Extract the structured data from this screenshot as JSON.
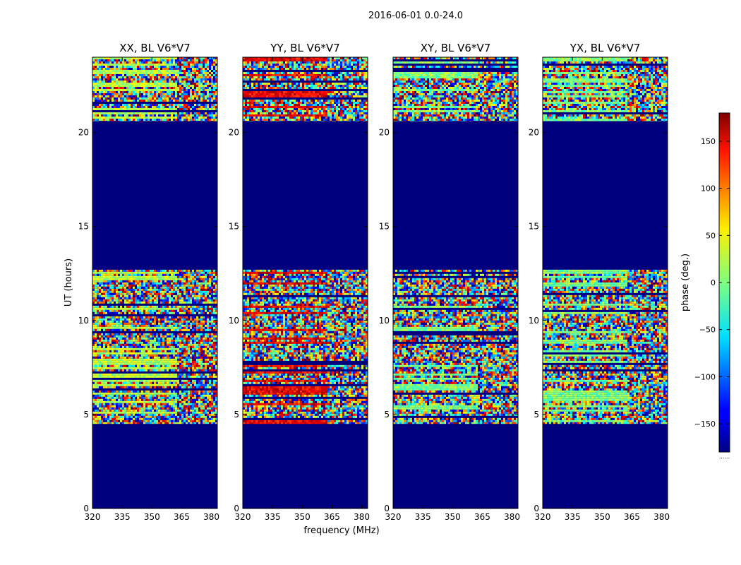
{
  "figure": {
    "suptitle": "2016-06-01 0.0-24.0"
  },
  "chart_data": {
    "type": "heatmap",
    "title": "2016-06-01 0.0-24.0",
    "xlabel": "frequency (MHz)",
    "ylabel": "UT (hours)",
    "xlim": [
      320,
      383
    ],
    "ylim": [
      0,
      24
    ],
    "x_ticks": [
      320,
      335,
      350,
      365,
      380
    ],
    "y_ticks": [
      0,
      5,
      10,
      15,
      20
    ],
    "colorbar": {
      "label": "phase (deg.)",
      "range": [
        -180,
        180
      ],
      "ticks": [
        -150,
        -100,
        -50,
        0,
        50,
        100,
        150
      ],
      "colormap": "jet",
      "underlabel": "......"
    },
    "blank_phase_value": -180,
    "data_time_ranges": [
      {
        "start": 4.5,
        "end": 12.7,
        "content": "noisy phase"
      },
      {
        "start": 20.6,
        "end": 24.0,
        "content": "noisy phase"
      }
    ],
    "panels": [
      {
        "name": "XX",
        "title": "XX, BL V6*V7",
        "dominant_phase_deg": 20
      },
      {
        "name": "YY",
        "title": "YY, BL V6*V7",
        "dominant_phase_deg": 140
      },
      {
        "name": "XY",
        "title": "XY, BL V6*V7",
        "dominant_phase_deg": 0
      },
      {
        "name": "YX",
        "title": "YX, BL V6*V7",
        "dominant_phase_deg": 0
      }
    ]
  },
  "colors": {
    "blank": "#00007f",
    "axes": "#000000"
  }
}
